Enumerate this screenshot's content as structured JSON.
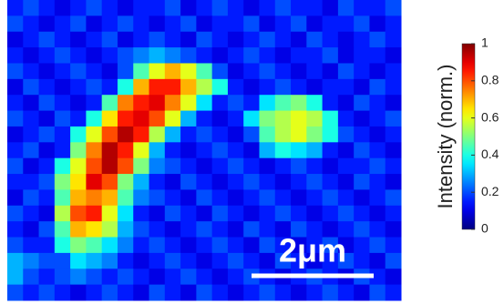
{
  "chart_data": {
    "type": "heatmap",
    "colormap": "jet",
    "z": [
      [
        0.15,
        0.2,
        0.15,
        0.1,
        0.15,
        0.2,
        0.15,
        0.1,
        0.15,
        0.15,
        0.2,
        0.1,
        0.15,
        0.2,
        0.15,
        0.1,
        0.15,
        0.2,
        0.15,
        0.15,
        0.1,
        0.2,
        0.15,
        0.15,
        0.2
      ],
      [
        0.2,
        0.15,
        0.1,
        0.15,
        0.2,
        0.1,
        0.15,
        0.2,
        0.15,
        0.1,
        0.15,
        0.2,
        0.1,
        0.15,
        0.15,
        0.2,
        0.1,
        0.15,
        0.2,
        0.1,
        0.15,
        0.15,
        0.2,
        0.1,
        0.15
      ],
      [
        0.1,
        0.15,
        0.2,
        0.15,
        0.1,
        0.15,
        0.2,
        0.1,
        0.15,
        0.2,
        0.15,
        0.1,
        0.2,
        0.15,
        0.1,
        0.15,
        0.2,
        0.15,
        0.1,
        0.2,
        0.15,
        0.1,
        0.15,
        0.2,
        0.15
      ],
      [
        0.15,
        0.1,
        0.15,
        0.2,
        0.15,
        0.1,
        0.15,
        0.2,
        0.25,
        0.3,
        0.25,
        0.2,
        0.15,
        0.1,
        0.15,
        0.2,
        0.15,
        0.1,
        0.15,
        0.15,
        0.2,
        0.1,
        0.15,
        0.15,
        0.1
      ],
      [
        0.2,
        0.15,
        0.1,
        0.15,
        0.2,
        0.15,
        0.1,
        0.2,
        0.45,
        0.6,
        0.7,
        0.6,
        0.45,
        0.2,
        0.1,
        0.15,
        0.2,
        0.15,
        0.1,
        0.15,
        0.1,
        0.2,
        0.15,
        0.1,
        0.15
      ],
      [
        0.1,
        0.2,
        0.15,
        0.1,
        0.15,
        0.2,
        0.15,
        0.4,
        0.7,
        0.85,
        0.85,
        0.7,
        0.55,
        0.4,
        0.15,
        0.1,
        0.15,
        0.2,
        0.15,
        0.1,
        0.15,
        0.15,
        0.1,
        0.2,
        0.15
      ],
      [
        0.15,
        0.1,
        0.2,
        0.15,
        0.1,
        0.15,
        0.45,
        0.75,
        0.85,
        0.9,
        0.75,
        0.6,
        0.35,
        0.15,
        0.2,
        0.15,
        0.35,
        0.45,
        0.5,
        0.4,
        0.15,
        0.1,
        0.2,
        0.15,
        0.1
      ],
      [
        0.2,
        0.15,
        0.1,
        0.2,
        0.15,
        0.4,
        0.65,
        0.85,
        0.9,
        0.8,
        0.6,
        0.3,
        0.15,
        0.1,
        0.15,
        0.35,
        0.5,
        0.55,
        0.6,
        0.55,
        0.4,
        0.15,
        0.1,
        0.15,
        0.2
      ],
      [
        0.1,
        0.15,
        0.2,
        0.15,
        0.4,
        0.6,
        0.8,
        0.95,
        0.85,
        0.55,
        0.3,
        0.15,
        0.2,
        0.15,
        0.1,
        0.2,
        0.45,
        0.55,
        0.6,
        0.5,
        0.4,
        0.2,
        0.15,
        0.1,
        0.15
      ],
      [
        0.15,
        0.2,
        0.1,
        0.15,
        0.5,
        0.75,
        0.95,
        0.85,
        0.6,
        0.3,
        0.15,
        0.1,
        0.15,
        0.2,
        0.15,
        0.1,
        0.3,
        0.4,
        0.35,
        0.3,
        0.15,
        0.1,
        0.2,
        0.15,
        0.1
      ],
      [
        0.2,
        0.1,
        0.15,
        0.4,
        0.6,
        0.8,
        0.95,
        0.8,
        0.5,
        0.25,
        0.2,
        0.15,
        0.1,
        0.15,
        0.2,
        0.15,
        0.1,
        0.15,
        0.2,
        0.15,
        0.1,
        0.15,
        0.15,
        0.2,
        0.15
      ],
      [
        0.15,
        0.15,
        0.2,
        0.5,
        0.65,
        0.9,
        0.8,
        0.5,
        0.3,
        0.15,
        0.1,
        0.2,
        0.15,
        0.1,
        0.15,
        0.2,
        0.15,
        0.1,
        0.15,
        0.2,
        0.15,
        0.1,
        0.2,
        0.15,
        0.1
      ],
      [
        0.1,
        0.2,
        0.15,
        0.45,
        0.7,
        0.75,
        0.7,
        0.45,
        0.25,
        0.2,
        0.15,
        0.1,
        0.2,
        0.15,
        0.1,
        0.15,
        0.2,
        0.15,
        0.1,
        0.15,
        0.2,
        0.15,
        0.1,
        0.15,
        0.2
      ],
      [
        0.2,
        0.15,
        0.1,
        0.55,
        0.8,
        0.85,
        0.6,
        0.35,
        0.15,
        0.1,
        0.2,
        0.15,
        0.1,
        0.2,
        0.15,
        0.1,
        0.15,
        0.2,
        0.15,
        0.1,
        0.15,
        0.2,
        0.15,
        0.1,
        0.15
      ],
      [
        0.15,
        0.1,
        0.2,
        0.45,
        0.7,
        0.65,
        0.55,
        0.3,
        0.2,
        0.15,
        0.1,
        0.15,
        0.2,
        0.15,
        0.1,
        0.2,
        0.15,
        0.1,
        0.2,
        0.15,
        0.1,
        0.15,
        0.2,
        0.15,
        0.1
      ],
      [
        0.2,
        0.15,
        0.15,
        0.4,
        0.5,
        0.45,
        0.35,
        0.25,
        0.15,
        0.2,
        0.15,
        0.1,
        0.15,
        0.2,
        0.15,
        0.1,
        0.2,
        0.15,
        0.1,
        0.15,
        0.2,
        0.1,
        0.15,
        0.2,
        0.15
      ],
      [
        0.3,
        0.25,
        0.2,
        0.2,
        0.35,
        0.3,
        0.25,
        0.15,
        0.1,
        0.15,
        0.2,
        0.15,
        0.1,
        0.15,
        0.2,
        0.15,
        0.1,
        0.2,
        0.15,
        0.1,
        0.15,
        0.2,
        0.15,
        0.1,
        0.2
      ],
      [
        0.3,
        0.2,
        0.15,
        0.2,
        0.25,
        0.2,
        0.15,
        0.2,
        0.15,
        0.1,
        0.15,
        0.2,
        0.15,
        0.1,
        0.15,
        0.2,
        0.15,
        0.1,
        0.15,
        0.2,
        0.15,
        0.1,
        0.2,
        0.15,
        0.1
      ],
      [
        0.2,
        0.15,
        0.2,
        0.15,
        0.1,
        0.15,
        0.2,
        0.15,
        0.1,
        0.2,
        0.15,
        0.1,
        0.2,
        0.15,
        0.1,
        0.15,
        0.2,
        0.15,
        0.1,
        0.15,
        0.2,
        0.15,
        0.1,
        0.2,
        0.15
      ]
    ],
    "zlim": [
      0,
      1
    ],
    "zticks": [
      0,
      0.2,
      0.4,
      0.6,
      0.8,
      1
    ],
    "zlabel": "Intensity (norm.)",
    "annotation": "2μm"
  }
}
